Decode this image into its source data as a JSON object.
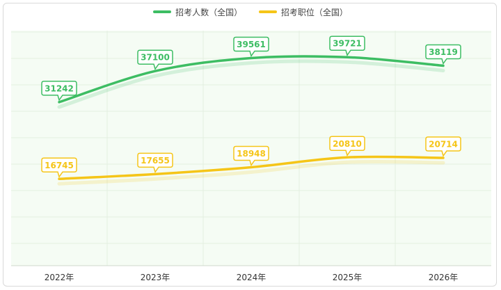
{
  "chart_data": {
    "type": "line",
    "categories": [
      "2022年",
      "2023年",
      "2024年",
      "2025年",
      "2026年"
    ],
    "series": [
      {
        "name": "招考人数（全国）",
        "values": [
          31242,
          37100,
          39561,
          39721,
          38119
        ],
        "color": "#3dbd63"
      },
      {
        "name": "招考职位（全国）",
        "values": [
          16745,
          17655,
          18948,
          20810,
          20714
        ],
        "color": "#f5c518"
      }
    ],
    "grid": true,
    "legend_position": "top-center",
    "background": "#f5fcf4"
  }
}
